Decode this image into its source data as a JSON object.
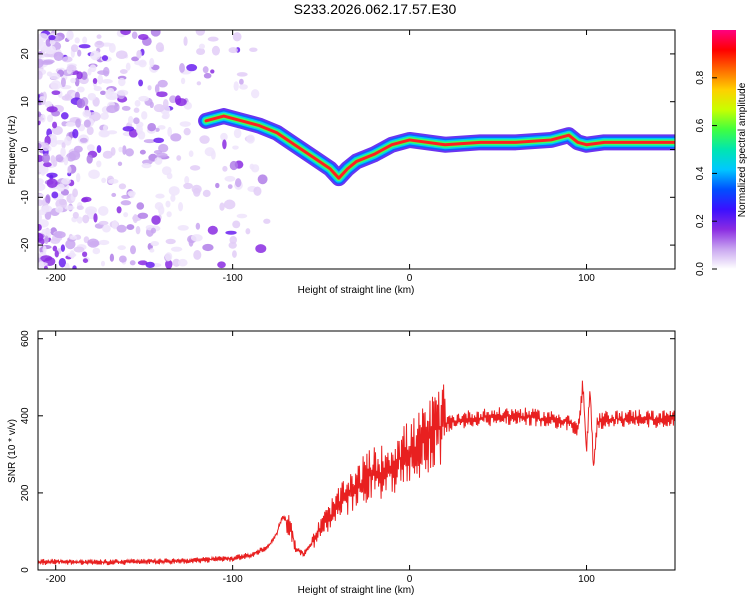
{
  "title": "S233.2026.062.17.57.E30",
  "chart_data": [
    {
      "type": "heatmap",
      "panel": "spectrogram",
      "xlabel": "Height of straight line (km)",
      "ylabel": "Frequency (Hz)",
      "xlim": [
        -210,
        150
      ],
      "ylim": [
        -25,
        25
      ],
      "xticks": [
        -200,
        -100,
        0,
        100
      ],
      "xtick_labels": [
        "-200",
        "-100",
        "0",
        "100"
      ],
      "yticks": [
        -20,
        -10,
        0,
        10,
        20
      ],
      "ytick_labels": [
        "-20",
        "-10",
        "0",
        "10",
        "20"
      ],
      "ridge": {
        "description": "dominant spectral ridge (frequency vs height)",
        "x": [
          -115,
          -105,
          -95,
          -85,
          -75,
          -65,
          -55,
          -45,
          -40,
          -35,
          -30,
          -20,
          -10,
          0,
          20,
          40,
          60,
          80,
          90,
          95,
          100,
          110,
          130,
          150
        ],
        "y": [
          6,
          7,
          6,
          5,
          3.5,
          1,
          -1.5,
          -4,
          -6,
          -4,
          -2.5,
          -1,
          1,
          2,
          1,
          1.5,
          1.5,
          2,
          3,
          1.5,
          1,
          1.5,
          1.5,
          1.5
        ]
      },
      "colorbar": {
        "label": "Normalized spectral amplitude",
        "range": [
          0,
          1
        ],
        "ticks": [
          0.0,
          0.2,
          0.4,
          0.6,
          0.8
        ],
        "tick_labels": [
          "0.0",
          "0.2",
          "0.4",
          "0.6",
          "0.8"
        ],
        "colors": [
          "#ffffff",
          "#c9a6f0",
          "#8a2be2",
          "#3a10ff",
          "#0050ff",
          "#00c8ff",
          "#00e6b0",
          "#40ff40",
          "#c8ff00",
          "#ffd000",
          "#ff6a00",
          "#ff0000",
          "#ff0080"
        ]
      }
    },
    {
      "type": "line",
      "panel": "snr",
      "xlabel": "Height of straight line (km)",
      "ylabel": "SNR (10 * v/v)",
      "xlim": [
        -210,
        150
      ],
      "ylim": [
        0,
        620
      ],
      "xticks": [
        -200,
        -100,
        0,
        100
      ],
      "xtick_labels": [
        "-200",
        "-100",
        "0",
        "100"
      ],
      "yticks": [
        0,
        200,
        400,
        600
      ],
      "ytick_labels": [
        "0",
        "200",
        "400",
        "600"
      ],
      "series": [
        {
          "name": "SNR",
          "color": "#e82020",
          "x": [
            -210,
            -200,
            -180,
            -160,
            -140,
            -120,
            -110,
            -100,
            -90,
            -80,
            -75,
            -72,
            -68,
            -64,
            -60,
            -55,
            -50,
            -45,
            -40,
            -35,
            -30,
            -25,
            -20,
            -15,
            -10,
            -5,
            0,
            5,
            10,
            15,
            20,
            25,
            30,
            40,
            50,
            60,
            70,
            80,
            90,
            95,
            98,
            100,
            102,
            104,
            106,
            110,
            120,
            130,
            140,
            150
          ],
          "y": [
            20,
            22,
            20,
            21,
            22,
            25,
            28,
            30,
            38,
            60,
            95,
            140,
            120,
            55,
            40,
            70,
            110,
            140,
            170,
            190,
            210,
            240,
            250,
            255,
            270,
            290,
            305,
            320,
            345,
            365,
            378,
            385,
            390,
            395,
            398,
            400,
            395,
            390,
            385,
            360,
            480,
            300,
            470,
            260,
            380,
            390,
            392,
            395,
            390,
            395
          ]
        }
      ]
    }
  ]
}
